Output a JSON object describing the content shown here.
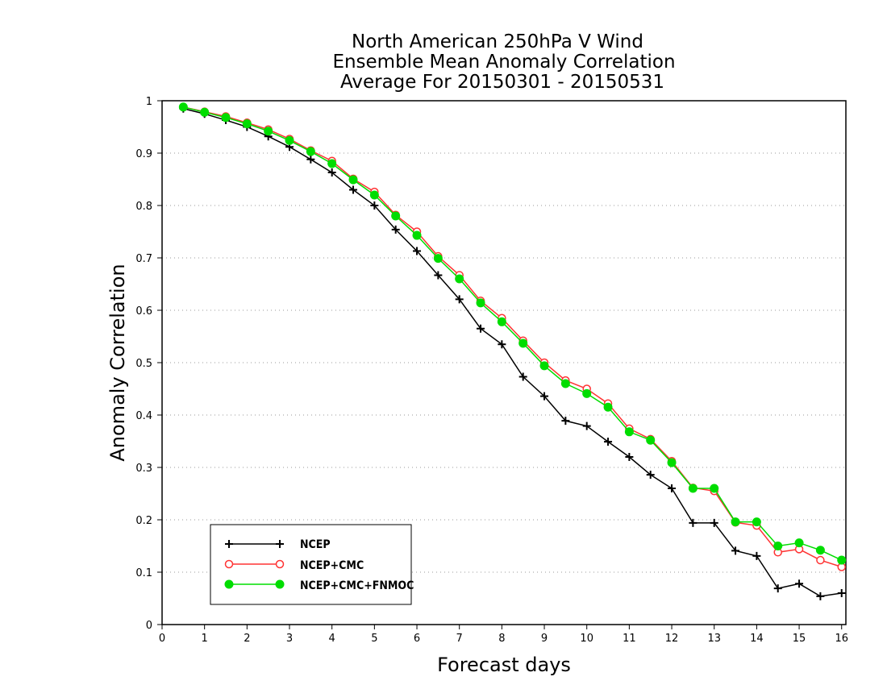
{
  "chart_data": {
    "type": "line",
    "title_lines": [
      "North American 250hPa V Wind",
      "Ensemble Mean Anomaly Correlation",
      "Average For 20150301 - 20150531"
    ],
    "xlabel": "Forecast days",
    "ylabel": "Anomaly Correlation",
    "xlim": [
      0,
      16.1
    ],
    "ylim": [
      0,
      1
    ],
    "xticks": [
      0,
      1,
      2,
      3,
      4,
      5,
      6,
      7,
      8,
      9,
      10,
      11,
      12,
      13,
      14,
      15,
      16
    ],
    "yticks": [
      0,
      0.1,
      0.2,
      0.3,
      0.4,
      0.5,
      0.6,
      0.7,
      0.8,
      0.9,
      1
    ],
    "x": [
      0.5,
      1,
      1.5,
      2,
      2.5,
      3,
      3.5,
      4,
      4.5,
      5,
      5.5,
      6,
      6.5,
      7,
      7.5,
      8,
      8.5,
      9,
      9.5,
      10,
      10.5,
      11,
      11.5,
      12,
      12.5,
      13,
      13.5,
      14,
      14.5,
      15,
      15.5,
      16
    ],
    "grid": "horizontal dotted",
    "legend_position": "bottom-left",
    "series": [
      {
        "name": "NCEP",
        "color": "#000000",
        "marker": "plus",
        "values": [
          0.985,
          0.975,
          0.963,
          0.95,
          0.932,
          0.912,
          0.888,
          0.863,
          0.83,
          0.8,
          0.754,
          0.713,
          0.667,
          0.621,
          0.565,
          0.535,
          0.473,
          0.436,
          0.389,
          0.379,
          0.349,
          0.32,
          0.286,
          0.26,
          0.194,
          0.194,
          0.141,
          0.131,
          0.069,
          0.078,
          0.054,
          0.06
        ]
      },
      {
        "name": "NCEP+CMC",
        "color": "#ff3333",
        "marker": "open-circle",
        "values": [
          0.988,
          0.979,
          0.97,
          0.958,
          0.945,
          0.927,
          0.905,
          0.885,
          0.851,
          0.826,
          0.782,
          0.75,
          0.703,
          0.667,
          0.618,
          0.585,
          0.542,
          0.5,
          0.466,
          0.45,
          0.422,
          0.374,
          0.354,
          0.312,
          0.261,
          0.255,
          0.195,
          0.189,
          0.138,
          0.144,
          0.123,
          0.11
        ]
      },
      {
        "name": "NCEP+CMC+FNMOC",
        "color": "#00dd00",
        "marker": "filled-circle",
        "values": [
          0.988,
          0.978,
          0.968,
          0.956,
          0.942,
          0.924,
          0.903,
          0.88,
          0.849,
          0.82,
          0.78,
          0.743,
          0.699,
          0.66,
          0.614,
          0.578,
          0.537,
          0.494,
          0.46,
          0.441,
          0.415,
          0.368,
          0.352,
          0.309,
          0.26,
          0.26,
          0.196,
          0.196,
          0.15,
          0.156,
          0.142,
          0.123
        ]
      }
    ]
  }
}
